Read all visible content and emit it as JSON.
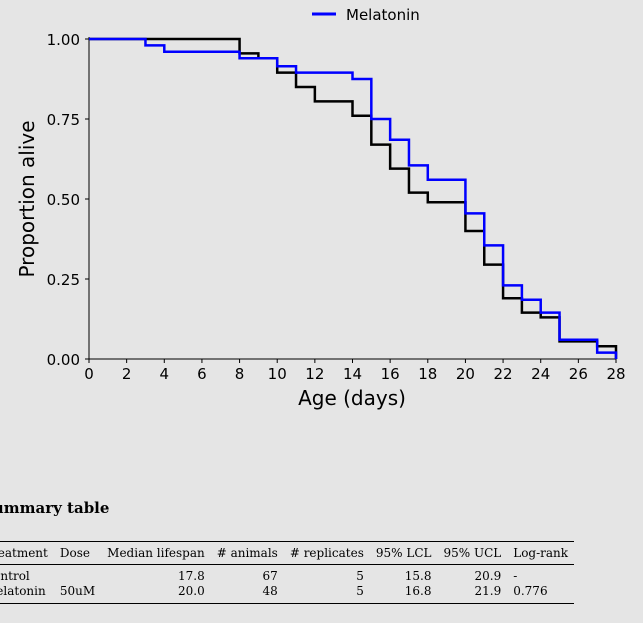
{
  "chart_data": {
    "type": "line",
    "step": true,
    "xlabel": "Age (days)",
    "ylabel": "Proportion alive",
    "xlim": [
      0,
      28
    ],
    "ylim": [
      0,
      1
    ],
    "xticks": [
      0,
      2,
      4,
      6,
      8,
      10,
      12,
      14,
      16,
      18,
      20,
      22,
      24,
      26,
      28
    ],
    "yticks": [
      0.0,
      0.25,
      0.5,
      0.75,
      1.0
    ],
    "yticklabels": [
      "0.00",
      "0.25",
      "0.50",
      "0.75",
      "1.00"
    ],
    "grid": false,
    "legend_position": "top",
    "series": [
      {
        "name": "",
        "color": "#000000",
        "x": [
          0,
          8,
          9,
          10,
          11,
          12,
          14,
          15,
          16,
          17,
          18,
          19,
          20,
          21,
          22,
          23,
          24,
          25,
          27,
          28
        ],
        "y": [
          1.0,
          0.955,
          0.94,
          0.895,
          0.85,
          0.805,
          0.76,
          0.67,
          0.595,
          0.52,
          0.49,
          0.49,
          0.4,
          0.295,
          0.19,
          0.145,
          0.13,
          0.055,
          0.04,
          0.0
        ]
      },
      {
        "name": "Melatonin",
        "color": "#0000ff",
        "x": [
          0,
          3,
          4,
          8,
          10,
          11,
          14,
          15,
          16,
          17,
          18,
          20,
          21,
          22,
          23,
          24,
          25,
          27,
          28
        ],
        "y": [
          1.0,
          0.98,
          0.96,
          0.94,
          0.915,
          0.895,
          0.875,
          0.75,
          0.685,
          0.605,
          0.56,
          0.455,
          0.355,
          0.23,
          0.185,
          0.145,
          0.06,
          0.02,
          0.0
        ]
      }
    ]
  },
  "summary": {
    "title": "Summary table",
    "headers": [
      "Treatment",
      "Dose",
      "Median lifespan",
      "# animals",
      "# replicates",
      "95% LCL",
      "95% UCL",
      "Log-rank"
    ],
    "rows": [
      [
        "Control",
        "",
        "17.8",
        "67",
        "5",
        "15.8",
        "20.9",
        "-"
      ],
      [
        "Melatonin",
        "50uM",
        "20.0",
        "48",
        "5",
        "16.8",
        "21.9",
        "0.776"
      ]
    ]
  }
}
